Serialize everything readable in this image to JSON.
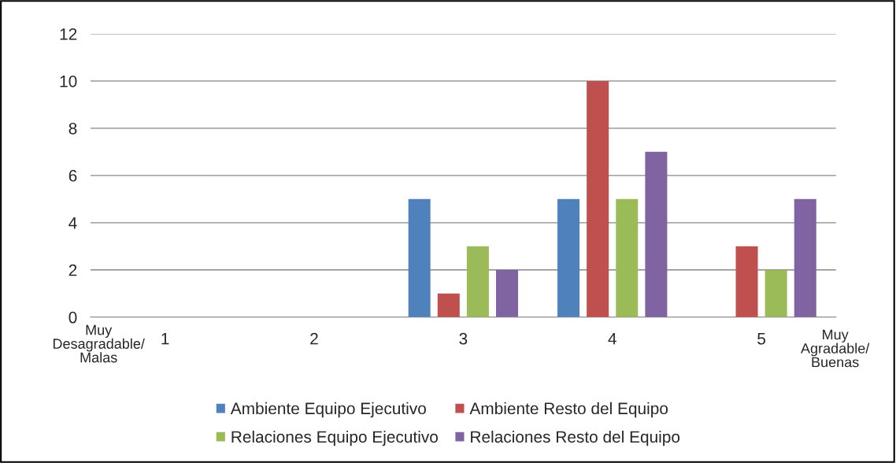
{
  "chart_data": {
    "type": "bar",
    "categories": [
      "1",
      "2",
      "3",
      "4",
      "5"
    ],
    "series": [
      {
        "name": "Ambiente Equipo Ejecutivo",
        "color": "#4f81bd",
        "values": [
          0,
          0,
          5,
          5,
          0
        ]
      },
      {
        "name": "Ambiente Resto del Equipo",
        "color": "#c0504d",
        "values": [
          0,
          0,
          1,
          10,
          3
        ]
      },
      {
        "name": "Relaciones Equipo Ejecutivo",
        "color": "#9bbb59",
        "values": [
          0,
          0,
          3,
          5,
          2
        ]
      },
      {
        "name": "Relaciones Resto del Equipo",
        "color": "#8064a2",
        "values": [
          0,
          0,
          2,
          7,
          5
        ]
      }
    ],
    "ylim": [
      0,
      12
    ],
    "yticks": [
      0,
      2,
      4,
      6,
      8,
      10,
      12
    ],
    "annotations": [
      "Muy\nDesagradable/\nMalas",
      "Muy\nAgradable/\nBuenas"
    ],
    "grid": "y",
    "legend": "bottom"
  }
}
